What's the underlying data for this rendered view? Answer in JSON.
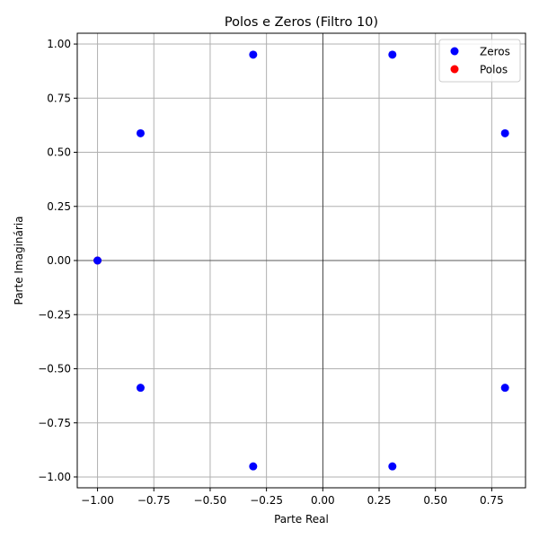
{
  "chart_data": {
    "type": "scatter",
    "title": "Polos e Zeros (Filtro 10)",
    "xlabel": "Parte Real",
    "ylabel": "Parte Imaginária",
    "xlim": [
      -1.09,
      0.9
    ],
    "ylim": [
      -1.05,
      1.05
    ],
    "x_ticks": [
      "−1.00",
      "−0.75",
      "−0.50",
      "−0.25",
      "0.00",
      "0.25",
      "0.50",
      "0.75"
    ],
    "x_tick_values": [
      -1.0,
      -0.75,
      -0.5,
      -0.25,
      0.0,
      0.25,
      0.5,
      0.75
    ],
    "y_ticks": [
      "1.00",
      "0.75",
      "0.50",
      "0.25",
      "0.00",
      "−0.25",
      "−0.50",
      "−0.75",
      "−1.00"
    ],
    "y_tick_values": [
      1.0,
      0.75,
      0.5,
      0.25,
      0.0,
      -0.25,
      -0.5,
      -0.75,
      -1.0
    ],
    "grid": true,
    "legend_position": "top-right",
    "series": [
      {
        "name": "Zeros",
        "color": "#0000ff",
        "points": [
          [
            -1.0,
            0.0
          ],
          [
            -0.809,
            0.588
          ],
          [
            -0.809,
            -0.588
          ],
          [
            -0.309,
            0.951
          ],
          [
            -0.309,
            -0.951
          ],
          [
            0.309,
            0.951
          ],
          [
            0.309,
            -0.951
          ],
          [
            0.809,
            0.588
          ],
          [
            0.809,
            -0.588
          ]
        ]
      },
      {
        "name": "Polos",
        "color": "#ff0000",
        "points": [
          [
            -1.0,
            0.0
          ]
        ]
      }
    ]
  }
}
